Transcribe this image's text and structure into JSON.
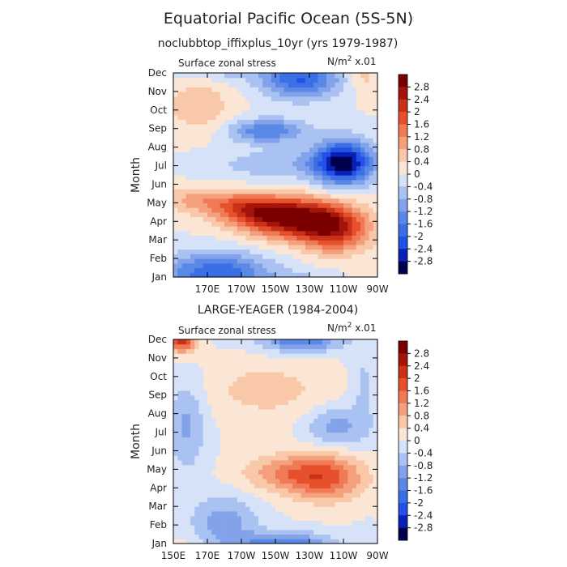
{
  "figure": {
    "title": "Equatorial Pacific Ocean (5S-5N)"
  },
  "chart_data": [
    {
      "type": "heatmap",
      "subtitle": "noclubbtop_iffixplus_10yr (yrs 1979-1987)",
      "variable_label": "Surface zonal stress",
      "units_base": "N/m",
      "units_sup": "2",
      "units_suffix": " x.01",
      "ylabel": "Month",
      "xlabel": "",
      "x_ticks": [
        "170E",
        "170W",
        "150W",
        "130W",
        "110W",
        "90W"
      ],
      "x_ticks_values": [
        170,
        190,
        210,
        230,
        250,
        270
      ],
      "xlim": [
        150,
        270
      ],
      "y_ticks": [
        "Jan",
        "Feb",
        "Mar",
        "Apr",
        "May",
        "Jun",
        "Jul",
        "Aug",
        "Sep",
        "Oct",
        "Nov",
        "Dec"
      ],
      "levels": [
        -2.8,
        -2.4,
        -2,
        -1.6,
        -1.2,
        -0.8,
        -0.4,
        0,
        0.4,
        0.8,
        1.2,
        1.6,
        2,
        2.4,
        2.8
      ],
      "colorbar_labels": [
        "2.8",
        "2.4",
        "2",
        "1.6",
        "1.2",
        "0.8",
        "0.4",
        "0",
        "-0.4",
        "-0.8",
        "-1.2",
        "-1.6",
        "-2",
        "-2.4",
        "-2.8"
      ],
      "features": [
        {
          "lon": 222,
          "month": 3.2,
          "amp": 3.0,
          "slon": 22,
          "smon": 0.75
        },
        {
          "lon": 195,
          "month": 3.7,
          "amp": 1.4,
          "slon": 16,
          "smon": 0.55
        },
        {
          "lon": 245,
          "month": 2.4,
          "amp": 1.8,
          "slon": 14,
          "smon": 0.8
        },
        {
          "lon": 165,
          "month": 4.2,
          "amp": 0.9,
          "slon": 18,
          "smon": 0.5
        },
        {
          "lon": 250,
          "month": 6.2,
          "amp": -2.9,
          "slon": 12,
          "smon": 0.85
        },
        {
          "lon": 205,
          "month": 7.9,
          "amp": -1.6,
          "slon": 16,
          "smon": 0.45
        },
        {
          "lon": 225,
          "month": 10.7,
          "amp": -2.0,
          "slon": 16,
          "smon": 0.75
        },
        {
          "lon": 175,
          "month": 0.2,
          "amp": -2.0,
          "slon": 22,
          "smon": 0.8
        },
        {
          "lon": 215,
          "month": 6.1,
          "amp": -0.7,
          "slon": 30,
          "smon": 0.6
        },
        {
          "lon": 165,
          "month": 9.3,
          "amp": 0.7,
          "slon": 14,
          "smon": 1.1
        },
        {
          "lon": 262,
          "month": 11.0,
          "amp": 0.6,
          "slon": 6,
          "smon": 0.8
        }
      ]
    },
    {
      "type": "heatmap",
      "subtitle": "LARGE-YEAGER (1984-2004)",
      "variable_label": "Surface zonal stress",
      "units_base": "N/m",
      "units_sup": "2",
      "units_suffix": " x.01",
      "ylabel": "Month",
      "xlabel": "",
      "x_ticks": [
        "150E",
        "170E",
        "170W",
        "150W",
        "130W",
        "110W",
        "90W"
      ],
      "x_ticks_values": [
        150,
        170,
        190,
        210,
        230,
        250,
        270
      ],
      "xlim": [
        150,
        270
      ],
      "y_ticks": [
        "Jan",
        "Feb",
        "Mar",
        "Apr",
        "May",
        "Jun",
        "Jul",
        "Aug",
        "Sep",
        "Oct",
        "Nov",
        "Dec"
      ],
      "levels": [
        -2.8,
        -2.4,
        -2,
        -1.6,
        -1.2,
        -0.8,
        -0.4,
        0,
        0.4,
        0.8,
        1.2,
        1.6,
        2,
        2.4,
        2.8
      ],
      "colorbar_labels": [
        "2.8",
        "2.4",
        "2",
        "1.6",
        "1.2",
        "0.8",
        "0.4",
        "0",
        "-0.4",
        "-0.8",
        "-1.2",
        "-1.6",
        "-2",
        "-2.4",
        "-2.8"
      ],
      "features": [
        {
          "lon": 240,
          "month": 3.6,
          "amp": 1.6,
          "slon": 16,
          "smon": 0.9
        },
        {
          "lon": 215,
          "month": 3.8,
          "amp": 1.0,
          "slon": 18,
          "smon": 0.7
        },
        {
          "lon": 155,
          "month": 11.0,
          "amp": 2.2,
          "slon": 6,
          "smon": 0.5
        },
        {
          "lon": 205,
          "month": 8.3,
          "amp": 0.55,
          "slon": 28,
          "smon": 1.2
        },
        {
          "lon": 225,
          "month": 11.0,
          "amp": -1.6,
          "slon": 16,
          "smon": 0.5
        },
        {
          "lon": 245,
          "month": 6.3,
          "amp": -1.0,
          "slon": 12,
          "smon": 0.8
        },
        {
          "lon": 215,
          "month": 0.0,
          "amp": -1.5,
          "slon": 20,
          "smon": 0.45
        },
        {
          "lon": 180,
          "month": 1.2,
          "amp": -1.0,
          "slon": 14,
          "smon": 1.0
        },
        {
          "lon": 158,
          "month": 6.5,
          "amp": -0.9,
          "slon": 8,
          "smon": 1.8
        },
        {
          "lon": 262,
          "month": 8.5,
          "amp": -0.5,
          "slon": 6,
          "smon": 2.0
        }
      ]
    }
  ],
  "colors": {
    "levels_palette": [
      "#00004c",
      "#0a1fb4",
      "#2350e6",
      "#3c6ee6",
      "#5a88e6",
      "#82a2ea",
      "#aac2f2",
      "#d6e2f8",
      "#fbe6d6",
      "#f9c8a8",
      "#f4a07c",
      "#ef7a55",
      "#e6502b",
      "#c8321a",
      "#a5140a",
      "#7a0000"
    ]
  }
}
